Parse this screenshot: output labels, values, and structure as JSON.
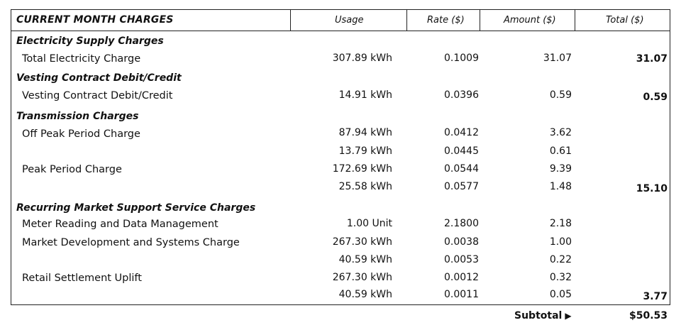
{
  "header": {
    "title": "CURRENT MONTH CHARGES",
    "usage": "Usage",
    "rate": "Rate ($)",
    "amount": "Amount ($)",
    "total": "Total ($)"
  },
  "sections": [
    {
      "name": "Electricity Supply Charges",
      "rows": [
        {
          "label": "Total Electricity Charge",
          "usage": "307.89 kWh",
          "rate": "0.1009",
          "amount": "31.07",
          "total": "31.07"
        }
      ]
    },
    {
      "name": "Vesting Contract Debit/Credit",
      "rows": [
        {
          "label": "Vesting Contract Debit/Credit",
          "usage": "14.91 kWh",
          "rate": "0.0396",
          "amount": "0.59",
          "total": "0.59"
        }
      ]
    },
    {
      "name": "Transmission Charges",
      "rows": [
        {
          "label": "Off Peak Period Charge",
          "usage": "87.94 kWh",
          "rate": "0.0412",
          "amount": "3.62",
          "total": ""
        },
        {
          "label": "",
          "usage": "13.79 kWh",
          "rate": "0.0445",
          "amount": "0.61",
          "total": ""
        },
        {
          "label": "Peak Period Charge",
          "usage": "172.69 kWh",
          "rate": "0.0544",
          "amount": "9.39",
          "total": ""
        },
        {
          "label": "",
          "usage": "25.58 kWh",
          "rate": "0.0577",
          "amount": "1.48",
          "total": "15.10"
        }
      ]
    },
    {
      "name": "Recurring Market Support Service Charges",
      "rows": [
        {
          "label": "Meter Reading and Data Management",
          "usage": "1.00 Unit",
          "rate": "2.1800",
          "amount": "2.18",
          "total": ""
        },
        {
          "label": "Market Development and Systems Charge",
          "usage": "267.30 kWh",
          "rate": "0.0038",
          "amount": "1.00",
          "total": ""
        },
        {
          "label": "",
          "usage": "40.59 kWh",
          "rate": "0.0053",
          "amount": "0.22",
          "total": ""
        },
        {
          "label": "Retail Settlement Uplift",
          "usage": "267.30 kWh",
          "rate": "0.0012",
          "amount": "0.32",
          "total": ""
        },
        {
          "label": "",
          "usage": "40.59 kWh",
          "rate": "0.0011",
          "amount": "0.05",
          "total": "3.77"
        }
      ]
    }
  ],
  "subtotal": {
    "label": "Subtotal",
    "value": "$50.53"
  }
}
